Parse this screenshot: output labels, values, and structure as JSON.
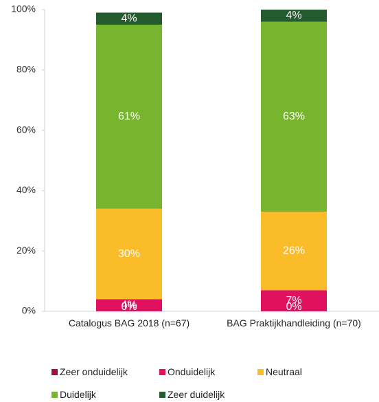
{
  "chart_data": {
    "type": "stacked_bar",
    "categories": [
      "Catalogus BAG 2018 (n=67)",
      "BAG Praktijkhandleiding (n=70)"
    ],
    "series": [
      {
        "name": "Zeer onduidelijk",
        "color": "#a50f3c",
        "values": [
          0,
          0
        ],
        "value_labels": [
          "0%",
          "0%"
        ]
      },
      {
        "name": "Onduidelijk",
        "color": "#e0115f",
        "values": [
          4,
          7
        ],
        "value_labels": [
          "4%",
          "7%"
        ]
      },
      {
        "name": "Neutraal",
        "color": "#fbbc2a",
        "values": [
          30,
          26
        ],
        "value_labels": [
          "30%",
          "26%"
        ]
      },
      {
        "name": "Duidelijk",
        "color": "#77b52e",
        "values": [
          61,
          63
        ],
        "value_labels": [
          "61%",
          "63%"
        ]
      },
      {
        "name": "Zeer duidelijk",
        "color": "#235b2e",
        "values": [
          4,
          4
        ],
        "value_labels": [
          "4%",
          "4%"
        ]
      }
    ],
    "ylim": [
      0,
      100
    ],
    "yticks": [
      {
        "value": 0,
        "label": "0%"
      },
      {
        "value": 20,
        "label": "20%"
      },
      {
        "value": 40,
        "label": "40%"
      },
      {
        "value": 60,
        "label": "60%"
      },
      {
        "value": 80,
        "label": "80%"
      },
      {
        "value": 100,
        "label": "100%"
      }
    ],
    "legend": "bottom"
  }
}
